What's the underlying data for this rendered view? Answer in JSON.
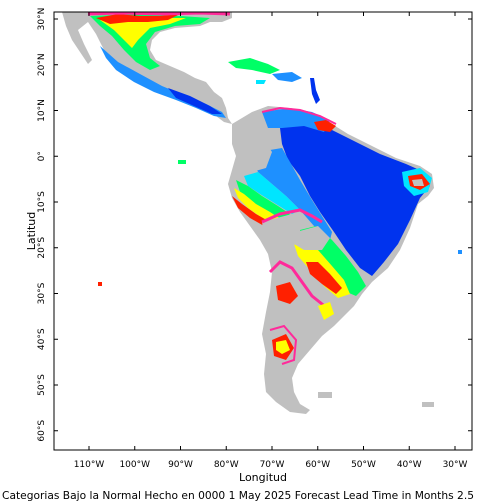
{
  "caption": "Categorias Bajo la Normal Hecho en 0000 1 May 2025 Forecast Lead Time in Months 2.5",
  "x_axis": {
    "title": "Longitud",
    "ticks": [
      {
        "value": -110,
        "label": "110°W"
      },
      {
        "value": -100,
        "label": "100°W"
      },
      {
        "value": -90,
        "label": "90°W"
      },
      {
        "value": -80,
        "label": "80°W"
      },
      {
        "value": -70,
        "label": "70°W"
      },
      {
        "value": -60,
        "label": "60°W"
      },
      {
        "value": -50,
        "label": "50°W"
      },
      {
        "value": -40,
        "label": "40°W"
      },
      {
        "value": -30,
        "label": "30°W"
      }
    ]
  },
  "y_axis": {
    "title": "Latitud",
    "ticks": [
      {
        "value": 30,
        "label": "30°N"
      },
      {
        "value": 20,
        "label": "20°N"
      },
      {
        "value": 10,
        "label": "10°N"
      },
      {
        "value": 0,
        "label": "0°"
      },
      {
        "value": -10,
        "label": "10°S"
      },
      {
        "value": -20,
        "label": "20°S"
      },
      {
        "value": -30,
        "label": "30°S"
      },
      {
        "value": -40,
        "label": "40°S"
      },
      {
        "value": -50,
        "label": "50°S"
      },
      {
        "value": -60,
        "label": "60°S"
      }
    ]
  },
  "colors": {
    "land_no_signal": "#c0c0c0",
    "very_high": "#0033ee",
    "high": "#1e90ff",
    "moderate": "#00e5ff",
    "mid": "#00ff66",
    "low": "#ccff00",
    "lower": "#ffff00",
    "lowest": "#ff2000",
    "edge": "#ff2a9a"
  }
}
